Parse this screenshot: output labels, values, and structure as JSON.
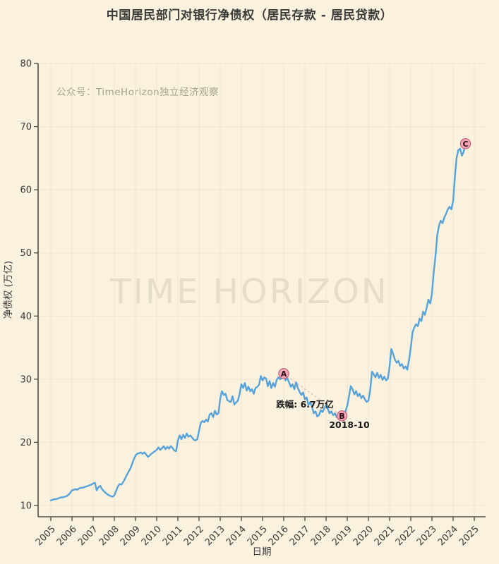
{
  "page": {
    "watermark_top": "公众号：TimeHorizon独立经济观察",
    "watermark_center": "TIME HORIZON"
  },
  "colors": {
    "background": "#FAF2DF",
    "grid": "#EAE1C8",
    "spine": "#4D4A44",
    "tick_text": "#3A3A38",
    "line": "#57A2D9",
    "marker_fill": "#F0A4B5",
    "marker_edge": "#BA5C74",
    "marker_text": "#2E0C12",
    "annotation_text": "#1A1A1A",
    "dashed": "#C9A3A3"
  },
  "chart_data": {
    "type": "line",
    "title": "中国居民部门对银行净债权（居民存款 - 居民贷款）",
    "xlabel": "日期",
    "ylabel": "净债权 (万亿)",
    "x_ticks": [
      2005,
      2006,
      2007,
      2008,
      2009,
      2010,
      2011,
      2012,
      2013,
      2014,
      2015,
      2016,
      2017,
      2018,
      2019,
      2020,
      2021,
      2022,
      2023,
      2024,
      2025
    ],
    "y_ticks": [
      10,
      20,
      30,
      40,
      50,
      60,
      70,
      80
    ],
    "xlim": [
      2004.4,
      2025.55
    ],
    "ylim": [
      8.2,
      80
    ],
    "grid": true,
    "series": [
      {
        "name": "净债权",
        "start_year": 2005,
        "start_month": 1,
        "freq": "monthly",
        "values": [
          10.8,
          10.9,
          11.0,
          11.0,
          11.1,
          11.2,
          11.3,
          11.3,
          11.4,
          11.5,
          11.7,
          12.0,
          12.4,
          12.5,
          12.6,
          12.5,
          12.7,
          12.8,
          12.8,
          12.9,
          13.0,
          13.1,
          13.2,
          13.3,
          13.5,
          13.6,
          12.4,
          12.9,
          13.1,
          12.6,
          12.3,
          12.0,
          11.8,
          11.6,
          11.5,
          11.4,
          11.6,
          12.3,
          13.0,
          13.4,
          13.3,
          13.7,
          14.2,
          14.8,
          15.3,
          15.8,
          16.5,
          17.3,
          17.9,
          18.2,
          18.3,
          18.4,
          18.2,
          18.4,
          18.1,
          17.7,
          17.9,
          18.2,
          18.4,
          18.6,
          18.8,
          19.2,
          18.8,
          19.1,
          19.4,
          18.9,
          19.3,
          19.0,
          19.4,
          19.1,
          18.7,
          18.6,
          20.3,
          21.1,
          20.5,
          21.2,
          20.7,
          21.4,
          20.9,
          21.1,
          20.8,
          20.4,
          20.3,
          20.5,
          21.8,
          23.1,
          23.4,
          23.2,
          23.6,
          23.3,
          24.4,
          24.6,
          24.0,
          25.0,
          24.4,
          24.6,
          26.9,
          28.1,
          27.5,
          27.7,
          26.7,
          26.5,
          26.4,
          27.3,
          26.0,
          26.3,
          26.6,
          27.7,
          29.2,
          28.6,
          29.4,
          28.2,
          28.8,
          28.1,
          28.4,
          27.7,
          28.6,
          28.8,
          29.1,
          30.5,
          29.8,
          30.3,
          30.1,
          28.9,
          29.7,
          28.6,
          29.4,
          28.8,
          29.9,
          30.3,
          30.0,
          30.2,
          30.9,
          29.8,
          30.2,
          29.5,
          28.8,
          29.2,
          28.4,
          29.5,
          28.6,
          28.0,
          27.5,
          27.9,
          26.8,
          27.1,
          25.9,
          26.4,
          25.7,
          24.6,
          24.9,
          24.1,
          24.3,
          25.1,
          24.8,
          25.4,
          25.9,
          25.3,
          24.6,
          24.9,
          24.3,
          24.6,
          24.0,
          24.4,
          23.9,
          24.2,
          24.6,
          24.9,
          25.8,
          27.3,
          28.9,
          28.4,
          27.6,
          28.1,
          27.3,
          27.7,
          27.0,
          27.4,
          26.8,
          26.4,
          26.6,
          28.2,
          31.2,
          30.8,
          30.3,
          31.0,
          30.2,
          30.7,
          29.9,
          30.4,
          29.8,
          30.1,
          32.0,
          34.8,
          34.0,
          33.1,
          32.6,
          32.9,
          32.1,
          32.4,
          31.7,
          32.0,
          31.5,
          33.0,
          35.0,
          37.4,
          38.2,
          38.7,
          38.4,
          39.6,
          39.2,
          40.7,
          40.2,
          41.3,
          42.6,
          42.0,
          43.5,
          46.9,
          49.5,
          52.8,
          54.3,
          55.1,
          54.7,
          55.6,
          56.2,
          56.9,
          57.3,
          56.9,
          58.2,
          62.1,
          65.1,
          66.3,
          66.5,
          65.4,
          66.0,
          67.3
        ]
      }
    ],
    "annotations": {
      "points": [
        {
          "label": "A",
          "t": 2016.0,
          "v": 30.9
        },
        {
          "label": "B",
          "t": 2018.75,
          "v": 24.2
        },
        {
          "label": "C",
          "t": 2024.5833,
          "v": 67.3
        }
      ],
      "texts": [
        {
          "text": "跌幅: 6.7万亿",
          "t": 2017.0,
          "v": 25.5
        },
        {
          "text": "2018-10",
          "t": 2019.1,
          "v": 22.3
        }
      ],
      "dashed_segment": {
        "from": "A",
        "to": "B"
      }
    }
  }
}
